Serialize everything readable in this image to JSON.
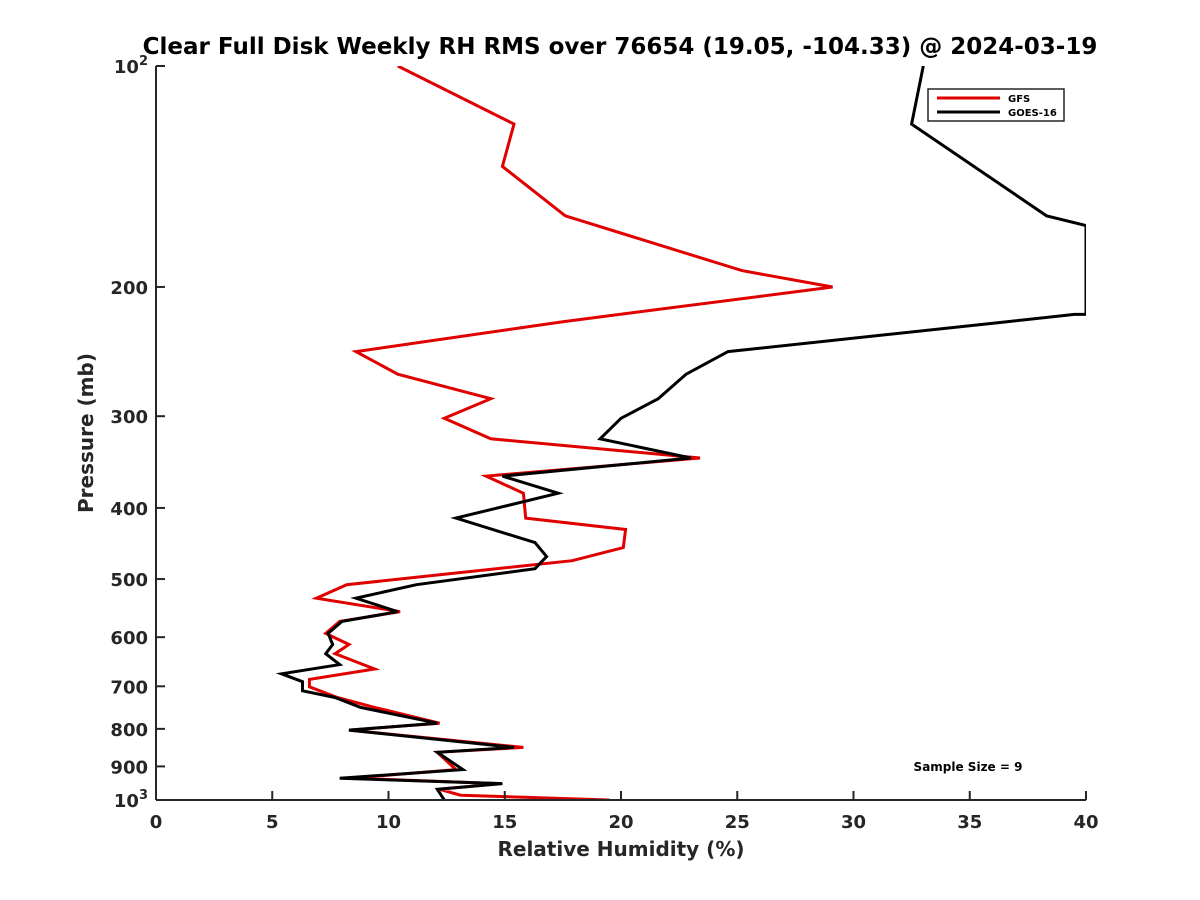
{
  "chart_data": {
    "type": "line",
    "title": "Clear Full Disk Weekly RH RMS over 76654 (19.05, -104.33) @ 2024-03-19",
    "xlabel": "Relative Humidity (%)",
    "ylabel": "Pressure (mb)",
    "xlim": [
      0,
      40
    ],
    "ylim": [
      1000,
      100
    ],
    "yscale": "log",
    "x_ticks": [
      0,
      5,
      10,
      15,
      20,
      25,
      30,
      35,
      40
    ],
    "x_tick_labels": [
      "0",
      "5",
      "10",
      "15",
      "20",
      "25",
      "30",
      "35",
      "40"
    ],
    "y_ticks": [
      100,
      200,
      300,
      400,
      500,
      600,
      700,
      800,
      900,
      1000
    ],
    "y_tick_labels": [
      {
        "base": "10",
        "exp": "2"
      },
      {
        "base": "200",
        "exp": ""
      },
      {
        "base": "300",
        "exp": ""
      },
      {
        "base": "400",
        "exp": ""
      },
      {
        "base": "500",
        "exp": ""
      },
      {
        "base": "600",
        "exp": ""
      },
      {
        "base": "700",
        "exp": ""
      },
      {
        "base": "800",
        "exp": ""
      },
      {
        "base": "900",
        "exp": ""
      },
      {
        "base": "10",
        "exp": "3"
      }
    ],
    "grid": false,
    "legend_position": "top-right",
    "annotation": "Sample Size = 9",
    "series": [
      {
        "name": "GFS",
        "color": "#e00000",
        "points": [
          [
            10.4,
            100
          ],
          [
            15.4,
            120
          ],
          [
            14.9,
            137
          ],
          [
            17.6,
            160
          ],
          [
            25.2,
            190
          ],
          [
            29.1,
            200
          ],
          [
            17.5,
            223
          ],
          [
            8.6,
            245
          ],
          [
            10.4,
            263
          ],
          [
            14.4,
            284
          ],
          [
            12.4,
            302
          ],
          [
            14.4,
            322
          ],
          [
            23.4,
            342
          ],
          [
            14.2,
            362
          ],
          [
            15.8,
            382
          ],
          [
            15.9,
            413
          ],
          [
            20.2,
            428
          ],
          [
            20.1,
            453
          ],
          [
            17.9,
            472
          ],
          [
            8.2,
            509
          ],
          [
            6.9,
            531
          ],
          [
            10.5,
            554
          ],
          [
            7.9,
            571
          ],
          [
            7.3,
            593
          ],
          [
            8.3,
            614
          ],
          [
            7.7,
            632
          ],
          [
            9.4,
            663
          ],
          [
            6.6,
            685
          ],
          [
            6.6,
            701
          ],
          [
            7.8,
            725
          ],
          [
            9.4,
            748
          ],
          [
            12.2,
            786
          ],
          [
            8.3,
            803
          ],
          [
            15.8,
            848
          ],
          [
            12.1,
            861
          ],
          [
            12.9,
            909
          ],
          [
            8.4,
            934
          ],
          [
            14.8,
            950
          ],
          [
            12.2,
            967
          ],
          [
            13.1,
            985
          ],
          [
            19.5,
            1000
          ]
        ]
      },
      {
        "name": "GOES-16",
        "color": "#000000",
        "points": [
          [
            33.0,
            100
          ],
          [
            32.5,
            120
          ],
          [
            38.3,
            160
          ],
          [
            40.0,
            165
          ],
          [
            40.0,
            218
          ],
          [
            39.5,
            218
          ],
          [
            36.6,
            223
          ],
          [
            24.6,
            245
          ],
          [
            22.8,
            263
          ],
          [
            21.6,
            284
          ],
          [
            20.0,
            302
          ],
          [
            19.1,
            322
          ],
          [
            23.0,
            342
          ],
          [
            14.9,
            362
          ],
          [
            17.3,
            382
          ],
          [
            12.9,
            413
          ],
          [
            16.3,
            446
          ],
          [
            16.8,
            466
          ],
          [
            16.3,
            484
          ],
          [
            11.2,
            509
          ],
          [
            8.6,
            531
          ],
          [
            10.4,
            554
          ],
          [
            8.0,
            571
          ],
          [
            7.4,
            593
          ],
          [
            7.6,
            614
          ],
          [
            7.3,
            632
          ],
          [
            7.9,
            654
          ],
          [
            5.4,
            673
          ],
          [
            6.3,
            690
          ],
          [
            6.3,
            710
          ],
          [
            7.7,
            725
          ],
          [
            8.8,
            748
          ],
          [
            12.1,
            786
          ],
          [
            8.3,
            803
          ],
          [
            15.4,
            848
          ],
          [
            12.1,
            861
          ],
          [
            13.2,
            909
          ],
          [
            7.9,
            934
          ],
          [
            14.9,
            950
          ],
          [
            12.1,
            967
          ],
          [
            12.4,
            1000
          ]
        ]
      }
    ]
  }
}
